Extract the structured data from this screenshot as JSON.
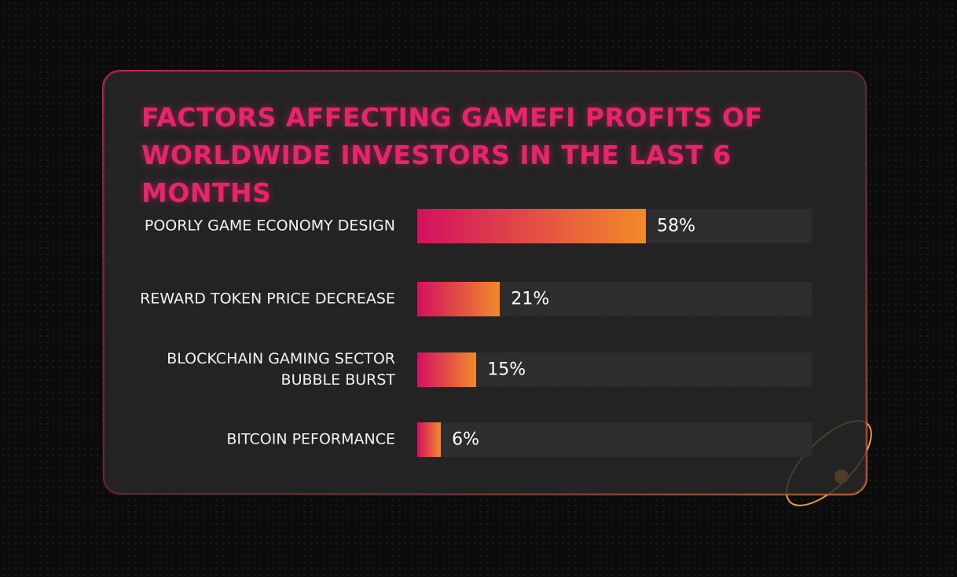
{
  "chart_data": {
    "type": "bar",
    "orientation": "horizontal",
    "title": "FACTORS AFFECTING GAMEFI PROFITS OF WORLDWIDE INVESTORS IN THE LAST 6 MONTHS",
    "categories": [
      "POORLY GAME ECONOMY DESIGN",
      "REWARD TOKEN PRICE DECREASE",
      "BLOCKCHAIN GAMING SECTOR BUBBLE BURST",
      "BITCOIN PEFORMANCE"
    ],
    "values": [
      58,
      21,
      15,
      6
    ],
    "value_labels": [
      "58%",
      "21%",
      "15%",
      "6%"
    ],
    "colors": [
      "#d3105f",
      "#f28a2a"
    ],
    "xlim": [
      0,
      100
    ]
  }
}
